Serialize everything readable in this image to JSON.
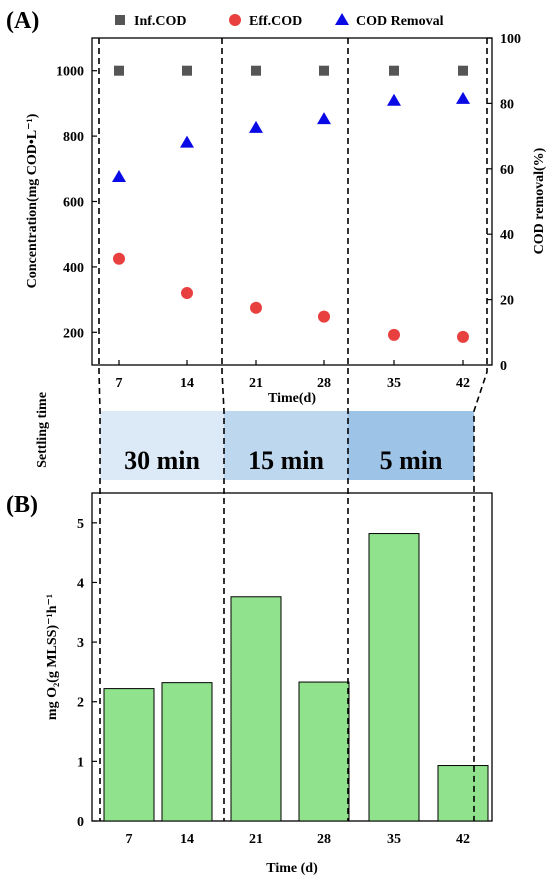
{
  "panel_labels": [
    "(A)",
    "(B)"
  ],
  "settling": {
    "label": "Settling time",
    "stages": [
      {
        "label": "30 min",
        "color": "#dce9f6"
      },
      {
        "label": "15 min",
        "color": "#bdd7ee"
      },
      {
        "label": "5 min",
        "color": "#9dc3e6"
      }
    ]
  },
  "chart_data": [
    {
      "type": "scatter",
      "xlabel": "Time(d)",
      "ylabel": "Concentration(mg COD•L⁻¹)",
      "y2label": "COD removal(%)",
      "x": [
        7,
        14,
        21,
        28,
        35,
        42
      ],
      "xticks": [
        "7",
        "14",
        "21",
        "28",
        "35",
        "42"
      ],
      "ylim": [
        100,
        1100
      ],
      "yticks": [
        200,
        400,
        600,
        800,
        1000
      ],
      "y2lim": [
        0,
        100
      ],
      "y2ticks": [
        0,
        20,
        40,
        60,
        80,
        100
      ],
      "legend_position": "top",
      "series": [
        {
          "name": "Inf.COD",
          "axis": "left",
          "marker": "square",
          "color": "#555555",
          "values": [
            1000,
            1000,
            1000,
            1000,
            1000,
            1000
          ]
        },
        {
          "name": "Eff.COD",
          "axis": "left",
          "marker": "circle",
          "color": "#e8403f",
          "values": [
            425,
            320,
            275,
            248,
            192,
            186
          ]
        },
        {
          "name": "COD Removal",
          "axis": "right",
          "marker": "triangle",
          "color": "#0a0ae6",
          "values": [
            57.5,
            68,
            72.5,
            75.2,
            80.8,
            81.4
          ]
        }
      ]
    },
    {
      "type": "bar",
      "xlabel": "Time (d)",
      "ylabel": "mg O₂(g MLSS)⁻¹h⁻¹",
      "categories": [
        "7",
        "14",
        "21",
        "28",
        "35",
        "42"
      ],
      "values": [
        2.22,
        2.32,
        3.76,
        2.33,
        4.82,
        0.93
      ],
      "ylim": [
        0,
        5.5
      ],
      "yticks": [
        0,
        1,
        2,
        3,
        4,
        5
      ],
      "bar_color": "#90e38c"
    }
  ]
}
